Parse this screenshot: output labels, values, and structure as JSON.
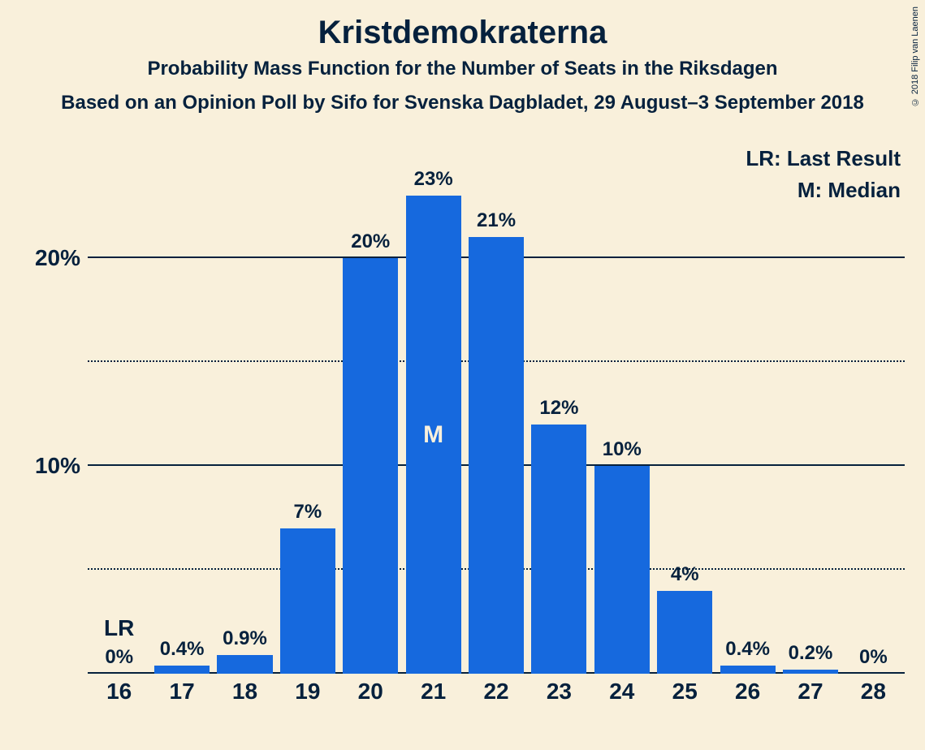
{
  "title": "Kristdemokraterna",
  "subtitle": "Probability Mass Function for the Number of Seats in the Riksdagen",
  "subtitle2": "Based on an Opinion Poll by Sifo for Svenska Dagbladet, 29 August–3 September 2018",
  "copyright": "© 2018 Filip van Laenen",
  "legend": {
    "lr": "LR: Last Result",
    "m": "M: Median"
  },
  "chart": {
    "type": "bar",
    "ymax": 25,
    "y_major_ticks": [
      10,
      20
    ],
    "y_minor_ticks": [
      5,
      15
    ],
    "y_major_labels": [
      "10%",
      "20%"
    ],
    "bar_color": "#1669de",
    "background_color": "#f9f0db",
    "text_color": "#06213d",
    "categories": [
      "16",
      "17",
      "18",
      "19",
      "20",
      "21",
      "22",
      "23",
      "24",
      "25",
      "26",
      "27",
      "28"
    ],
    "values": [
      0,
      0.4,
      0.9,
      7,
      20,
      23,
      21,
      12,
      10,
      4,
      0.4,
      0.2,
      0
    ],
    "value_labels": [
      "0%",
      "0.4%",
      "0.9%",
      "7%",
      "20%",
      "23%",
      "21%",
      "12%",
      "10%",
      "4%",
      "0.4%",
      "0.2%",
      "0%"
    ],
    "lr_index": 0,
    "lr_text": "LR",
    "median_index": 5,
    "median_text": "M"
  }
}
